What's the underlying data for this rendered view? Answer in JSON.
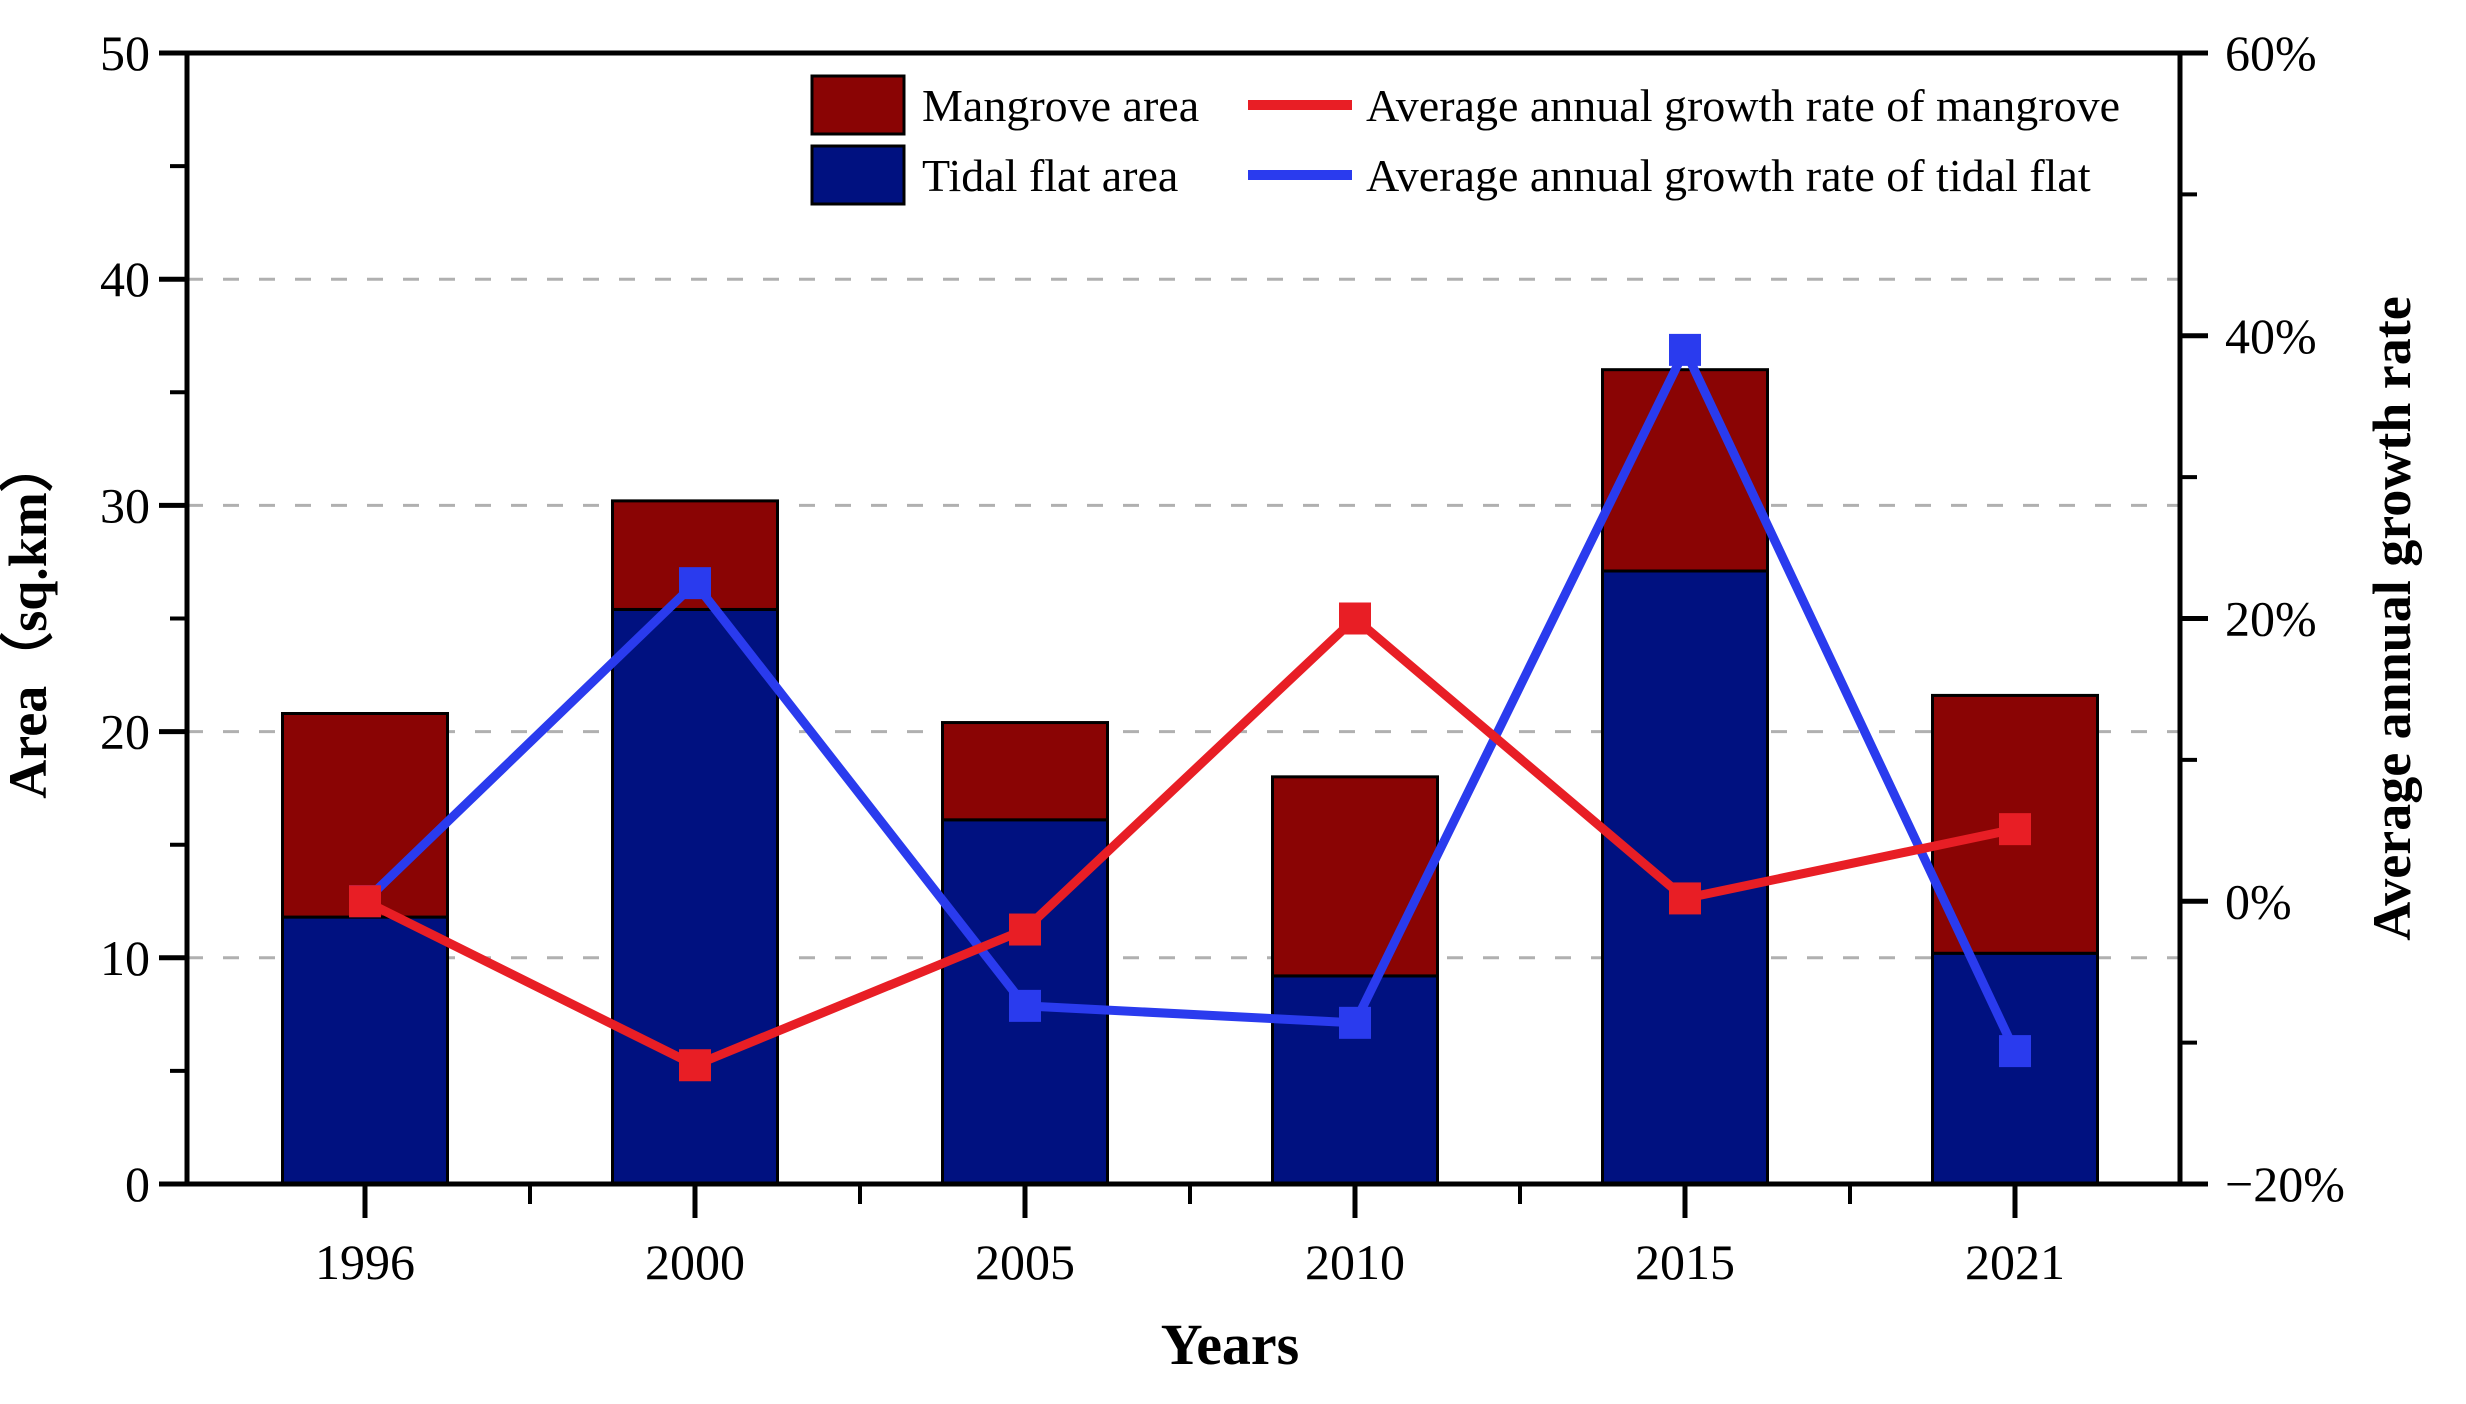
{
  "figure": {
    "background": "#ffffff",
    "description_visible_text_only": true
  },
  "legend": {
    "rows": [
      {
        "swatch_label": "Mangrove area",
        "swatch_color": "#8a0404",
        "line_label": "Average annual growth rate of mangrove",
        "line_color": "#e81e25"
      },
      {
        "swatch_label": "Tidal flat area",
        "swatch_color": "#001180",
        "line_label": "Average annual growth rate of tidal flat",
        "line_color": "#2a3bee"
      }
    ]
  },
  "chart_data": {
    "type": "combo: stacked bar + line, dual y-axes",
    "categories": [
      "1996",
      "2000",
      "2005",
      "2010",
      "2015",
      "2021"
    ],
    "bar_series": [
      {
        "name": "Tidal flat area",
        "axis": "left",
        "stack_position": "bottom",
        "color": "#001180",
        "values_sqkm": [
          11.8,
          25.4,
          16.1,
          9.2,
          27.1,
          10.2
        ]
      },
      {
        "name": "Mangrove area",
        "axis": "left",
        "stack_position": "top",
        "color": "#8a0404",
        "values_sqkm": [
          9.0,
          4.8,
          4.3,
          8.8,
          8.9,
          11.4
        ]
      }
    ],
    "stack_totals_sqkm": [
      20.8,
      30.2,
      20.4,
      18.0,
      36.0,
      21.6
    ],
    "line_series": [
      {
        "name": "Average annual growth rate of tidal flat",
        "axis": "right",
        "color": "#2a3bee",
        "marker": "square",
        "values_pct": [
          0.0,
          22.5,
          -7.4,
          -8.6,
          39.0,
          -10.6
        ]
      },
      {
        "name": "Average annual growth rate of mangrove",
        "axis": "right",
        "color": "#e81e25",
        "marker": "square",
        "values_pct": [
          0.0,
          -11.6,
          -2.0,
          20.0,
          0.2,
          5.1
        ]
      }
    ],
    "x_axis": {
      "label": "Years",
      "tick_labels": [
        "1996",
        "2000",
        "2005",
        "2010",
        "2015",
        "2021"
      ]
    },
    "left_axis": {
      "label": "Area（sq.km）",
      "min": 0,
      "max": 50,
      "major_step": 10,
      "minor_step": 5,
      "tick_labels": [
        "0",
        "10",
        "20",
        "30",
        "40",
        "50"
      ]
    },
    "right_axis": {
      "label": "Average annual growth rate",
      "min_pct": -20,
      "max_pct": 60,
      "major_step_pct": 20,
      "minor_step_pct": 10,
      "tick_labels": [
        "−20%",
        "0%",
        "20%",
        "40%",
        "60%"
      ]
    },
    "grid": {
      "horizontal_dashed_at_left_values": [
        10,
        20,
        30,
        40
      ],
      "color": "#b0b0b0",
      "style": "dashed"
    }
  },
  "colors": {
    "bar_mangrove": "#8a0404",
    "bar_tidal": "#001180",
    "line_mangrove": "#e81e25",
    "line_tidal": "#2a3bee",
    "axis": "#000000",
    "grid": "#b0b0b0",
    "background": "#ffffff"
  }
}
